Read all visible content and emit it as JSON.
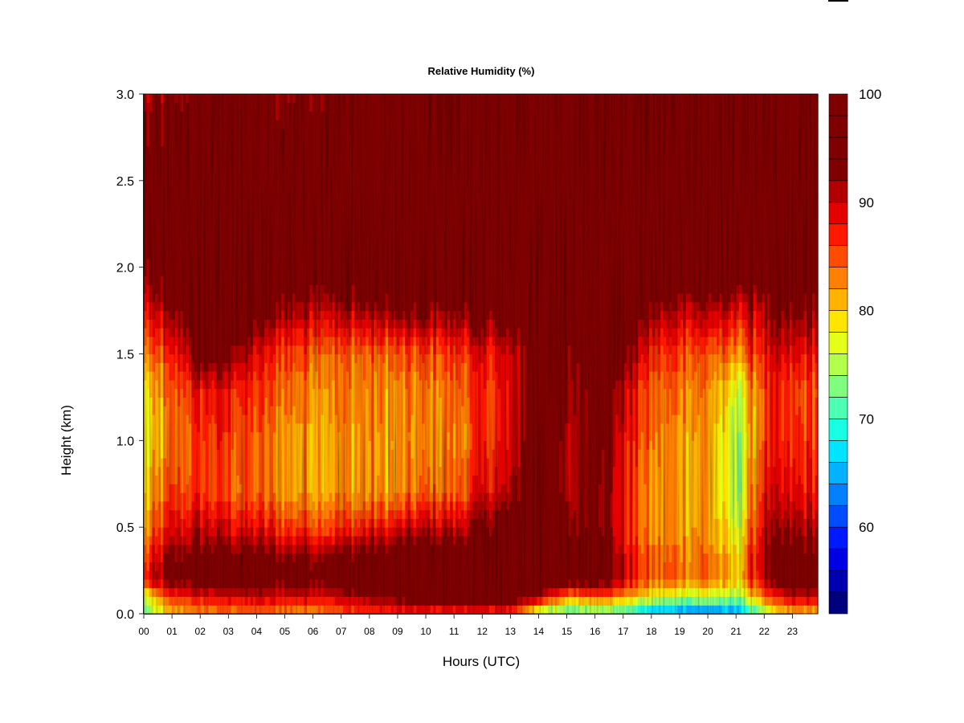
{
  "chart_data": {
    "type": "heatmap",
    "title": "Relative Humidity (%)",
    "xlabel": "Hours (UTC)",
    "ylabel": "Height (km)",
    "x_unit": "hours UTC",
    "y_unit": "km",
    "xlim": [
      0,
      23.9
    ],
    "ylim": [
      0.0,
      3.0
    ],
    "x_ticks": [
      "00",
      "01",
      "02",
      "03",
      "04",
      "05",
      "06",
      "07",
      "08",
      "09",
      "10",
      "11",
      "12",
      "13",
      "14",
      "15",
      "16",
      "17",
      "18",
      "19",
      "20",
      "21",
      "22",
      "23"
    ],
    "y_ticks": [
      "0.0",
      "0.5",
      "1.0",
      "1.5",
      "2.0",
      "2.5",
      "3.0"
    ],
    "colorbar": {
      "min": 52,
      "max": 100,
      "step": 2,
      "tick_labels": [
        "60",
        "70",
        "80",
        "90",
        "100"
      ],
      "colors": [
        "#00007f",
        "#0000b2",
        "#0000e5",
        "#0019ff",
        "#004cff",
        "#007fff",
        "#00b2ff",
        "#00e5ff",
        "#19ffe5",
        "#4cffb2",
        "#7fff7f",
        "#b2ff4c",
        "#e5ff19",
        "#ffe500",
        "#ffb200",
        "#ff7f00",
        "#ff4c00",
        "#ff1900",
        "#e50000",
        "#b20000",
        "#7f0000",
        "#7f0000",
        "#7f0000",
        "#7f0000"
      ]
    },
    "hours": [
      0,
      1,
      2,
      3,
      4,
      5,
      6,
      7,
      8,
      9,
      10,
      11,
      12,
      13,
      14,
      15,
      16,
      17,
      18,
      19,
      20,
      21,
      22,
      23
    ],
    "heights_km": [
      0.0,
      0.1,
      0.2,
      0.3,
      0.5,
      0.7,
      1.0,
      1.3,
      1.5,
      1.8,
      2.0,
      2.3,
      2.6,
      3.0
    ],
    "rh_percent": [
      [
        72,
        76,
        87,
        85,
        81,
        79,
        77,
        78,
        82,
        88,
        92,
        94,
        94,
        90
      ],
      [
        80,
        86,
        94,
        93,
        88,
        85,
        83,
        84,
        86,
        93,
        96,
        96,
        95,
        92
      ],
      [
        82,
        88,
        96,
        95,
        90,
        86,
        86,
        88,
        95,
        98,
        99,
        99,
        97,
        94
      ],
      [
        83,
        89,
        96,
        95,
        89,
        85,
        86,
        88,
        94,
        98,
        100,
        99,
        97,
        95
      ],
      [
        83,
        90,
        96,
        95,
        88,
        84,
        84,
        86,
        88,
        96,
        99,
        99,
        97,
        94
      ],
      [
        82,
        89,
        95,
        94,
        86,
        82,
        82,
        84,
        86,
        93,
        96,
        97,
        96,
        92
      ],
      [
        82,
        89,
        95,
        94,
        86,
        82,
        82,
        83,
        85,
        92,
        96,
        97,
        96,
        94
      ],
      [
        84,
        90,
        96,
        95,
        86,
        82,
        82,
        83,
        84,
        92,
        96,
        97,
        96,
        94
      ],
      [
        85,
        92,
        97,
        96,
        87,
        82,
        82,
        83,
        84,
        93,
        97,
        98,
        97,
        95
      ],
      [
        86,
        94,
        98,
        97,
        88,
        82,
        81,
        82,
        84,
        94,
        97,
        98,
        97,
        95
      ],
      [
        86,
        96,
        99,
        99,
        90,
        84,
        82,
        83,
        85,
        94,
        98,
        98,
        97,
        95
      ],
      [
        86,
        96,
        99,
        98,
        90,
        84,
        83,
        84,
        86,
        94,
        98,
        98,
        97,
        95
      ],
      [
        86,
        97,
        100,
        99,
        93,
        88,
        86,
        86,
        88,
        95,
        98,
        98,
        97,
        96
      ],
      [
        85,
        96,
        100,
        100,
        95,
        90,
        88,
        88,
        89,
        96,
        98,
        98,
        98,
        97
      ],
      [
        74,
        92,
        100,
        100,
        100,
        99,
        99,
        98,
        97,
        98,
        99,
        99,
        98,
        97
      ],
      [
        70,
        82,
        96,
        97,
        92,
        90,
        90,
        91,
        92,
        96,
        99,
        99,
        98,
        98
      ],
      [
        72,
        85,
        98,
        98,
        95,
        95,
        96,
        96,
        98,
        99,
        100,
        100,
        100,
        100
      ],
      [
        70,
        82,
        90,
        90,
        88,
        88,
        89,
        91,
        95,
        99,
        100,
        100,
        100,
        100
      ],
      [
        64,
        78,
        84,
        84,
        82,
        82,
        83,
        84,
        86,
        93,
        100,
        100,
        100,
        100
      ],
      [
        62,
        76,
        84,
        84,
        82,
        82,
        82,
        84,
        86,
        92,
        99,
        100,
        100,
        100
      ],
      [
        62,
        76,
        84,
        84,
        82,
        82,
        82,
        83,
        85,
        92,
        99,
        100,
        100,
        100
      ],
      [
        63,
        74,
        80,
        79,
        76,
        74,
        74,
        76,
        82,
        90,
        98,
        100,
        100,
        100
      ],
      [
        74,
        84,
        90,
        92,
        90,
        88,
        86,
        86,
        88,
        92,
        99,
        100,
        100,
        100
      ],
      [
        80,
        90,
        96,
        95,
        91,
        88,
        86,
        85,
        88,
        93,
        98,
        100,
        100,
        100
      ]
    ]
  }
}
